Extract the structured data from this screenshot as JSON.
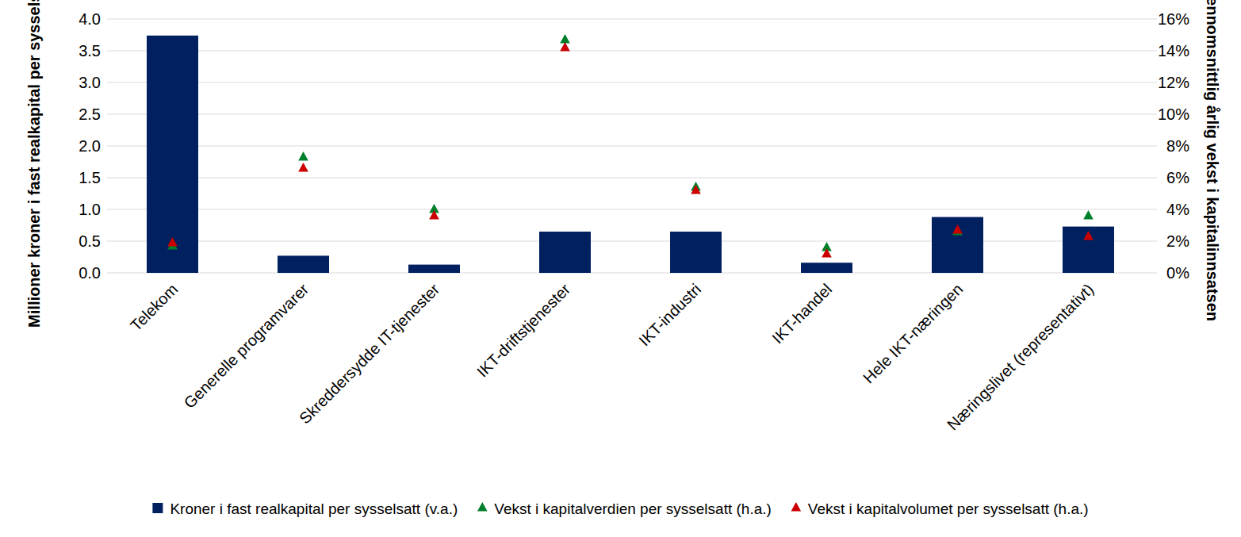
{
  "chart_data": {
    "type": "bar",
    "y_label": "Millioner kroner i fast realkapital per sysselsatt",
    "y2_label": "Gjennomsnittlig årlig vekst i kapitalinnsatsen",
    "categories": [
      "Telekom",
      "Generelle programvarer",
      "Skreddersydde IT-tjenester",
      "IKT-driftstjenester",
      "IKT-industri",
      "IKT-handel",
      "Hele IKT-næringen",
      "Næringslivet (representativt)"
    ],
    "series": [
      {
        "name": "Kroner i fast realkapital per sysselsatt (v.a.)",
        "type": "bar",
        "axis": "y",
        "color": "#002060",
        "values": [
          3.74,
          0.27,
          0.13,
          0.65,
          0.65,
          0.16,
          0.88,
          0.73
        ]
      },
      {
        "name": "Vekst i kapitalverdien per sysselsatt (h.a.)",
        "type": "scatter",
        "axis": "y2",
        "marker": "triangle",
        "color": "#00802b",
        "values": [
          1.7,
          7.3,
          4.0,
          14.7,
          5.4,
          1.6,
          2.6,
          3.6
        ]
      },
      {
        "name": "Vekst i kapitalvolumet per sysselsatt (h.a.)",
        "type": "scatter",
        "axis": "y2",
        "marker": "triangle",
        "color": "#cc0000",
        "values": [
          1.9,
          6.6,
          3.6,
          14.2,
          5.2,
          1.2,
          2.7,
          2.3
        ]
      }
    ],
    "ylim": [
      0,
      4
    ],
    "yticks": [
      {
        "value": 0,
        "label": "0.0"
      },
      0.5,
      {
        "value": 1,
        "label": "1.0"
      },
      1.5,
      {
        "value": 2,
        "label": "2.0"
      },
      2.5,
      {
        "value": 3,
        "label": "3.0"
      },
      3.5,
      {
        "value": 4,
        "label": "4.0"
      }
    ],
    "y2lim": [
      0,
      16
    ],
    "y2ticks": [
      {
        "value": 0,
        "label": "0%"
      },
      {
        "value": 2,
        "label": "2%"
      },
      {
        "value": 4,
        "label": "4%"
      },
      {
        "value": 6,
        "label": "6%"
      },
      {
        "value": 8,
        "label": "8%"
      },
      {
        "value": 10,
        "label": "10%"
      },
      {
        "value": 12,
        "label": "12%"
      },
      {
        "value": 14,
        "label": "14%"
      },
      {
        "value": 16,
        "label": "16%"
      }
    ],
    "grid": true,
    "legend": "bottom"
  }
}
